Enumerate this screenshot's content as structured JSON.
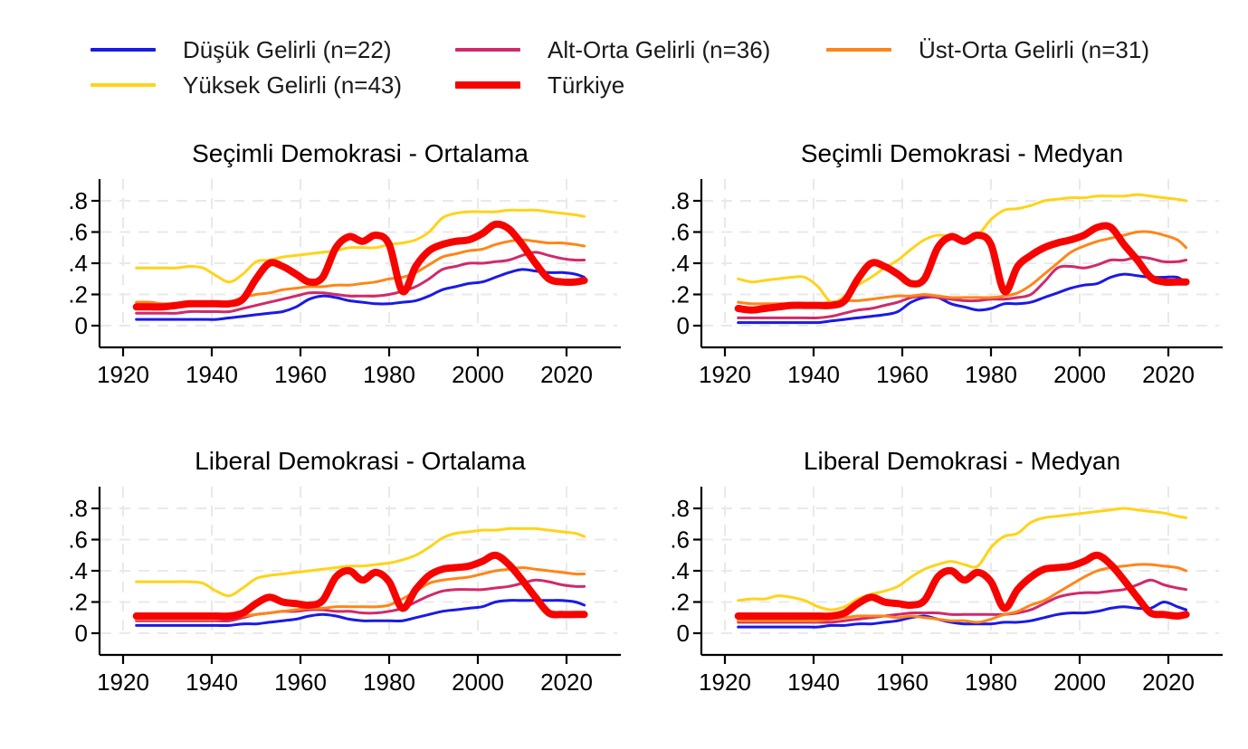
{
  "colors": {
    "low": "#1a1ae6",
    "lower_middle": "#d02a6a",
    "upper_middle": "#ff8519",
    "high": "#ffd319",
    "turkiye": "#f60400",
    "grid": "#e9e9e9",
    "axis": "#000000",
    "text": "#000000"
  },
  "legend": {
    "items": [
      {
        "label": "Düşük Gelirli (n=22)",
        "color_key": "low",
        "thick": false
      },
      {
        "label": "Alt-Orta Gelirli (n=36)",
        "color_key": "lower_middle",
        "thick": false
      },
      {
        "label": "Üst-Orta Gelirli (n=31)",
        "color_key": "upper_middle",
        "thick": false
      },
      {
        "label": "Yüksek Gelirli (n=43)",
        "color_key": "high",
        "thick": false
      },
      {
        "label": "Türkiye",
        "color_key": "turkiye",
        "thick": true
      }
    ]
  },
  "axes": {
    "x_ticks": [
      1920,
      1940,
      1960,
      1980,
      2000,
      2020
    ],
    "y_ticks": [
      {
        "label": "0",
        "value": 0
      },
      {
        "label": ".2",
        "value": 0.2
      },
      {
        "label": ".4",
        "value": 0.4
      },
      {
        "label": ".6",
        "value": 0.6
      },
      {
        "label": ".8",
        "value": 0.8
      }
    ],
    "xlim": [
      1915,
      2032
    ],
    "ylim": [
      0,
      0.9
    ],
    "grid": true
  },
  "chart_data": [
    {
      "type": "line",
      "title": "Seçimli Demokrasi - Ortalama",
      "x": [
        1923,
        1926,
        1929,
        1932,
        1935,
        1938,
        1941,
        1944,
        1947,
        1950,
        1953,
        1956,
        1959,
        1962,
        1965,
        1968,
        1971,
        1974,
        1977,
        1980,
        1983,
        1986,
        1989,
        1992,
        1995,
        1998,
        2001,
        2004,
        2007,
        2010,
        2013,
        2016,
        2019,
        2022,
        2024
      ],
      "series": [
        {
          "name": "Düşük Gelirli (n=22)",
          "color_key": "low",
          "width": 3,
          "values": [
            0.04,
            0.04,
            0.04,
            0.04,
            0.04,
            0.04,
            0.04,
            0.05,
            0.06,
            0.07,
            0.08,
            0.09,
            0.12,
            0.17,
            0.19,
            0.18,
            0.16,
            0.15,
            0.14,
            0.14,
            0.15,
            0.16,
            0.19,
            0.23,
            0.25,
            0.27,
            0.28,
            0.31,
            0.34,
            0.36,
            0.35,
            0.34,
            0.34,
            0.33,
            0.31
          ]
        },
        {
          "name": "Alt-Orta Gelirli (n=36)",
          "color_key": "lower_middle",
          "width": 3,
          "values": [
            0.08,
            0.08,
            0.08,
            0.08,
            0.09,
            0.09,
            0.09,
            0.09,
            0.11,
            0.13,
            0.15,
            0.17,
            0.19,
            0.21,
            0.21,
            0.2,
            0.19,
            0.19,
            0.19,
            0.2,
            0.22,
            0.25,
            0.3,
            0.36,
            0.38,
            0.4,
            0.4,
            0.41,
            0.42,
            0.45,
            0.47,
            0.45,
            0.43,
            0.42,
            0.42
          ]
        },
        {
          "name": "Üst-Orta Gelirli (n=31)",
          "color_key": "upper_middle",
          "width": 3,
          "values": [
            0.15,
            0.15,
            0.14,
            0.14,
            0.14,
            0.14,
            0.14,
            0.15,
            0.18,
            0.2,
            0.21,
            0.23,
            0.24,
            0.25,
            0.25,
            0.26,
            0.26,
            0.27,
            0.28,
            0.3,
            0.31,
            0.34,
            0.39,
            0.44,
            0.46,
            0.48,
            0.49,
            0.52,
            0.54,
            0.55,
            0.54,
            0.53,
            0.53,
            0.52,
            0.51
          ]
        },
        {
          "name": "Yüksek Gelirli (n=43)",
          "color_key": "high",
          "width": 3,
          "values": [
            0.37,
            0.37,
            0.37,
            0.37,
            0.38,
            0.37,
            0.32,
            0.28,
            0.33,
            0.41,
            0.42,
            0.44,
            0.45,
            0.46,
            0.47,
            0.48,
            0.5,
            0.5,
            0.5,
            0.52,
            0.53,
            0.55,
            0.6,
            0.69,
            0.72,
            0.73,
            0.73,
            0.73,
            0.74,
            0.74,
            0.74,
            0.73,
            0.72,
            0.71,
            0.7
          ]
        },
        {
          "name": "Türkiye",
          "color_key": "turkiye",
          "width": 8,
          "values": [
            0.12,
            0.12,
            0.12,
            0.13,
            0.14,
            0.14,
            0.14,
            0.14,
            0.17,
            0.3,
            0.4,
            0.38,
            0.33,
            0.28,
            0.31,
            0.5,
            0.57,
            0.54,
            0.58,
            0.52,
            0.22,
            0.38,
            0.48,
            0.52,
            0.54,
            0.55,
            0.59,
            0.65,
            0.62,
            0.52,
            0.4,
            0.3,
            0.28,
            0.28,
            0.29
          ]
        }
      ]
    },
    {
      "type": "line",
      "title": "Seçimli Demokrasi - Medyan",
      "x": [
        1923,
        1926,
        1929,
        1932,
        1935,
        1938,
        1941,
        1944,
        1947,
        1950,
        1953,
        1956,
        1959,
        1962,
        1965,
        1968,
        1971,
        1974,
        1977,
        1980,
        1983,
        1986,
        1989,
        1992,
        1995,
        1998,
        2001,
        2004,
        2007,
        2010,
        2013,
        2016,
        2019,
        2022,
        2024
      ],
      "series": [
        {
          "name": "Düşük Gelirli (n=22)",
          "color_key": "low",
          "width": 3,
          "values": [
            0.02,
            0.02,
            0.02,
            0.02,
            0.02,
            0.02,
            0.02,
            0.03,
            0.04,
            0.05,
            0.06,
            0.07,
            0.09,
            0.15,
            0.18,
            0.18,
            0.14,
            0.12,
            0.1,
            0.11,
            0.14,
            0.14,
            0.15,
            0.18,
            0.21,
            0.24,
            0.26,
            0.27,
            0.31,
            0.33,
            0.32,
            0.31,
            0.31,
            0.31,
            0.27
          ]
        },
        {
          "name": "Alt-Orta Gelirli (n=36)",
          "color_key": "lower_middle",
          "width": 3,
          "values": [
            0.05,
            0.05,
            0.05,
            0.05,
            0.05,
            0.05,
            0.05,
            0.06,
            0.08,
            0.1,
            0.11,
            0.13,
            0.15,
            0.18,
            0.19,
            0.18,
            0.17,
            0.16,
            0.16,
            0.17,
            0.17,
            0.18,
            0.2,
            0.28,
            0.37,
            0.38,
            0.37,
            0.39,
            0.42,
            0.42,
            0.44,
            0.43,
            0.41,
            0.41,
            0.42
          ]
        },
        {
          "name": "Üst-Orta Gelirli (n=31)",
          "color_key": "upper_middle",
          "width": 3,
          "values": [
            0.15,
            0.14,
            0.14,
            0.14,
            0.14,
            0.14,
            0.14,
            0.15,
            0.16,
            0.16,
            0.17,
            0.18,
            0.19,
            0.19,
            0.2,
            0.19,
            0.18,
            0.18,
            0.18,
            0.18,
            0.19,
            0.21,
            0.26,
            0.33,
            0.4,
            0.47,
            0.51,
            0.54,
            0.56,
            0.58,
            0.6,
            0.6,
            0.58,
            0.55,
            0.5
          ]
        },
        {
          "name": "Yüksek Gelirli (n=43)",
          "color_key": "high",
          "width": 3,
          "values": [
            0.3,
            0.28,
            0.29,
            0.3,
            0.31,
            0.31,
            0.25,
            0.15,
            0.19,
            0.26,
            0.31,
            0.37,
            0.42,
            0.49,
            0.55,
            0.58,
            0.57,
            0.55,
            0.58,
            0.68,
            0.74,
            0.75,
            0.77,
            0.8,
            0.81,
            0.82,
            0.82,
            0.83,
            0.83,
            0.83,
            0.84,
            0.83,
            0.82,
            0.81,
            0.8
          ]
        },
        {
          "name": "Türkiye",
          "color_key": "turkiye",
          "width": 8,
          "values": [
            0.11,
            0.1,
            0.11,
            0.12,
            0.13,
            0.13,
            0.13,
            0.13,
            0.16,
            0.3,
            0.4,
            0.38,
            0.33,
            0.27,
            0.3,
            0.5,
            0.57,
            0.54,
            0.58,
            0.52,
            0.22,
            0.38,
            0.45,
            0.5,
            0.53,
            0.55,
            0.58,
            0.63,
            0.63,
            0.52,
            0.42,
            0.31,
            0.28,
            0.28,
            0.28
          ]
        }
      ]
    },
    {
      "type": "line",
      "title": "Liberal Demokrasi - Ortalama",
      "x": [
        1923,
        1926,
        1929,
        1932,
        1935,
        1938,
        1941,
        1944,
        1947,
        1950,
        1953,
        1956,
        1959,
        1962,
        1965,
        1968,
        1971,
        1974,
        1977,
        1980,
        1983,
        1986,
        1989,
        1992,
        1995,
        1998,
        2001,
        2004,
        2007,
        2010,
        2013,
        2016,
        2019,
        2022,
        2024
      ],
      "series": [
        {
          "name": "Düşük Gelirli (n=22)",
          "color_key": "low",
          "width": 3,
          "values": [
            0.05,
            0.05,
            0.05,
            0.05,
            0.05,
            0.05,
            0.05,
            0.05,
            0.06,
            0.06,
            0.07,
            0.08,
            0.09,
            0.11,
            0.12,
            0.11,
            0.09,
            0.08,
            0.08,
            0.08,
            0.08,
            0.1,
            0.12,
            0.14,
            0.15,
            0.16,
            0.17,
            0.2,
            0.21,
            0.21,
            0.21,
            0.21,
            0.21,
            0.2,
            0.18
          ]
        },
        {
          "name": "Alt-Orta Gelirli (n=36)",
          "color_key": "lower_middle",
          "width": 3,
          "values": [
            0.08,
            0.08,
            0.08,
            0.08,
            0.08,
            0.08,
            0.08,
            0.08,
            0.1,
            0.12,
            0.13,
            0.14,
            0.14,
            0.15,
            0.15,
            0.14,
            0.14,
            0.13,
            0.13,
            0.14,
            0.16,
            0.2,
            0.24,
            0.27,
            0.28,
            0.28,
            0.28,
            0.29,
            0.3,
            0.32,
            0.34,
            0.33,
            0.31,
            0.3,
            0.3
          ]
        },
        {
          "name": "Üst-Orta Gelirli (n=31)",
          "color_key": "upper_middle",
          "width": 3,
          "values": [
            0.09,
            0.09,
            0.09,
            0.09,
            0.09,
            0.09,
            0.09,
            0.1,
            0.11,
            0.12,
            0.13,
            0.14,
            0.15,
            0.16,
            0.16,
            0.17,
            0.17,
            0.17,
            0.17,
            0.18,
            0.22,
            0.27,
            0.32,
            0.34,
            0.35,
            0.36,
            0.38,
            0.4,
            0.41,
            0.42,
            0.41,
            0.4,
            0.39,
            0.38,
            0.38
          ]
        },
        {
          "name": "Yüksek Gelirli (n=43)",
          "color_key": "high",
          "width": 3,
          "values": [
            0.33,
            0.33,
            0.33,
            0.33,
            0.33,
            0.32,
            0.27,
            0.24,
            0.29,
            0.35,
            0.37,
            0.38,
            0.39,
            0.4,
            0.41,
            0.42,
            0.43,
            0.43,
            0.44,
            0.45,
            0.47,
            0.5,
            0.55,
            0.61,
            0.64,
            0.65,
            0.66,
            0.66,
            0.67,
            0.67,
            0.67,
            0.66,
            0.65,
            0.64,
            0.62
          ]
        },
        {
          "name": "Türkiye",
          "color_key": "turkiye",
          "width": 8,
          "values": [
            0.11,
            0.11,
            0.11,
            0.11,
            0.11,
            0.11,
            0.11,
            0.11,
            0.13,
            0.19,
            0.23,
            0.2,
            0.19,
            0.18,
            0.21,
            0.36,
            0.4,
            0.34,
            0.39,
            0.33,
            0.16,
            0.28,
            0.37,
            0.41,
            0.42,
            0.43,
            0.46,
            0.5,
            0.44,
            0.34,
            0.23,
            0.13,
            0.12,
            0.12,
            0.12
          ]
        }
      ]
    },
    {
      "type": "line",
      "title": "Liberal Demokrasi - Medyan",
      "x": [
        1923,
        1926,
        1929,
        1932,
        1935,
        1938,
        1941,
        1944,
        1947,
        1950,
        1953,
        1956,
        1959,
        1962,
        1965,
        1968,
        1971,
        1974,
        1977,
        1980,
        1983,
        1986,
        1989,
        1992,
        1995,
        1998,
        2001,
        2004,
        2007,
        2010,
        2013,
        2016,
        2019,
        2022,
        2024
      ],
      "series": [
        {
          "name": "Düşük Gelirli (n=22)",
          "color_key": "low",
          "width": 3,
          "values": [
            0.04,
            0.04,
            0.04,
            0.04,
            0.04,
            0.04,
            0.04,
            0.05,
            0.05,
            0.06,
            0.06,
            0.07,
            0.08,
            0.1,
            0.11,
            0.09,
            0.07,
            0.06,
            0.06,
            0.06,
            0.07,
            0.07,
            0.08,
            0.1,
            0.12,
            0.13,
            0.13,
            0.14,
            0.16,
            0.17,
            0.16,
            0.16,
            0.2,
            0.17,
            0.15
          ]
        },
        {
          "name": "Alt-Orta Gelirli (n=36)",
          "color_key": "lower_middle",
          "width": 3,
          "values": [
            0.07,
            0.07,
            0.07,
            0.07,
            0.07,
            0.07,
            0.07,
            0.07,
            0.08,
            0.09,
            0.1,
            0.11,
            0.12,
            0.13,
            0.13,
            0.13,
            0.12,
            0.12,
            0.12,
            0.12,
            0.12,
            0.13,
            0.15,
            0.19,
            0.23,
            0.25,
            0.26,
            0.26,
            0.27,
            0.28,
            0.31,
            0.34,
            0.31,
            0.29,
            0.28
          ]
        },
        {
          "name": "Üst-Orta Gelirli (n=31)",
          "color_key": "upper_middle",
          "width": 3,
          "values": [
            0.08,
            0.08,
            0.08,
            0.08,
            0.08,
            0.08,
            0.08,
            0.09,
            0.1,
            0.11,
            0.11,
            0.11,
            0.1,
            0.11,
            0.1,
            0.09,
            0.08,
            0.08,
            0.07,
            0.09,
            0.12,
            0.14,
            0.18,
            0.21,
            0.26,
            0.31,
            0.36,
            0.4,
            0.42,
            0.43,
            0.44,
            0.44,
            0.43,
            0.42,
            0.4
          ]
        },
        {
          "name": "Yüksek Gelirli (n=43)",
          "color_key": "high",
          "width": 3,
          "values": [
            0.21,
            0.22,
            0.22,
            0.24,
            0.23,
            0.21,
            0.17,
            0.15,
            0.17,
            0.22,
            0.25,
            0.27,
            0.3,
            0.36,
            0.41,
            0.44,
            0.46,
            0.44,
            0.43,
            0.55,
            0.62,
            0.64,
            0.71,
            0.74,
            0.75,
            0.76,
            0.77,
            0.78,
            0.79,
            0.8,
            0.79,
            0.78,
            0.77,
            0.75,
            0.74
          ]
        },
        {
          "name": "Türkiye",
          "color_key": "turkiye",
          "width": 8,
          "values": [
            0.11,
            0.11,
            0.11,
            0.11,
            0.11,
            0.11,
            0.11,
            0.11,
            0.13,
            0.19,
            0.23,
            0.2,
            0.19,
            0.18,
            0.21,
            0.36,
            0.4,
            0.34,
            0.39,
            0.33,
            0.16,
            0.28,
            0.36,
            0.41,
            0.42,
            0.43,
            0.46,
            0.5,
            0.44,
            0.34,
            0.23,
            0.13,
            0.12,
            0.11,
            0.12
          ]
        }
      ]
    }
  ]
}
